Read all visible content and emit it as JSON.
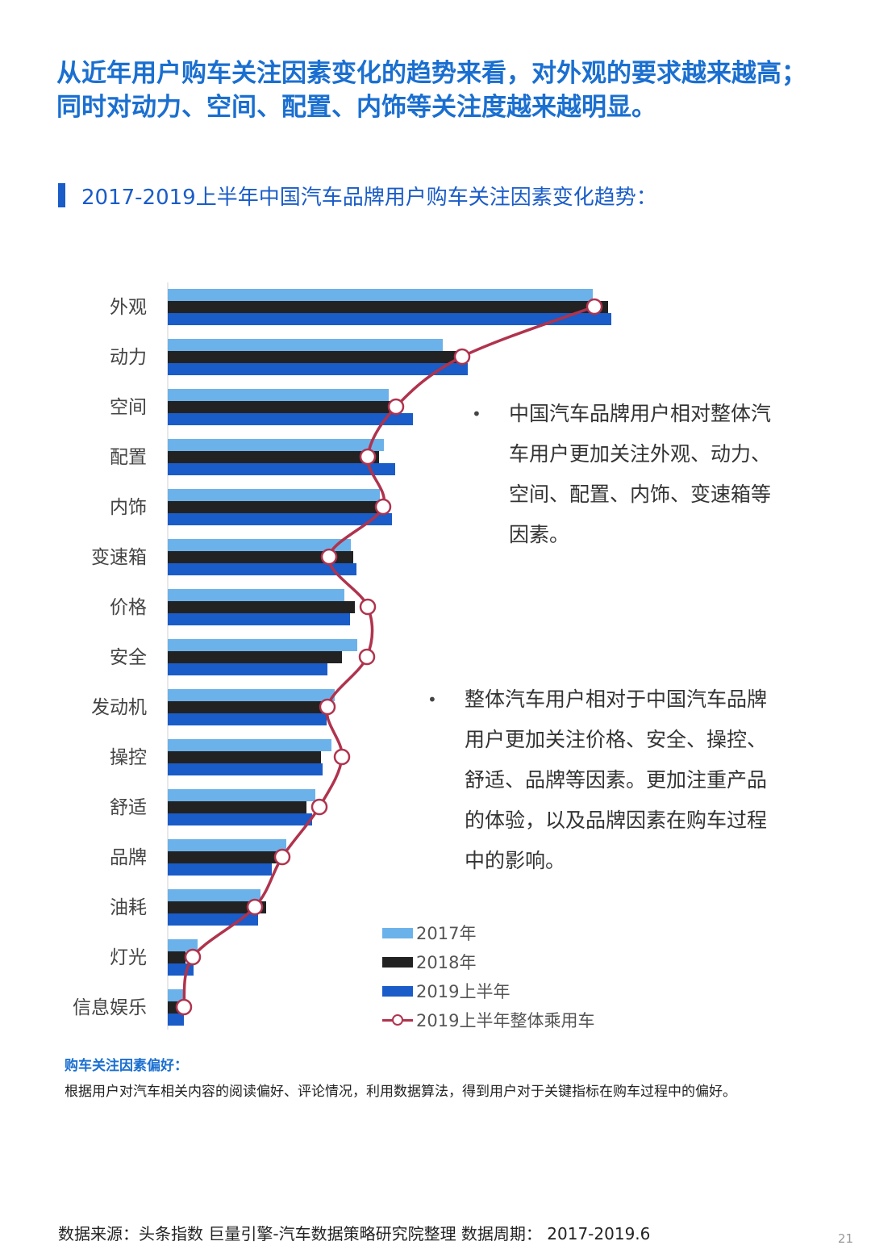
{
  "headline": {
    "line1": "从近年用户购车关注因素变化的趋势来看，对外观的要求越来越高；",
    "line2": "同时对动力、空间、配置、内饰等关注度越来越明显。"
  },
  "section_title": "2017-2019上半年中国汽车品牌用户购车关注因素变化趋势：",
  "colors": {
    "y2017": "#6cb2ea",
    "y2018": "#222222",
    "y2019h1": "#1a5cc8",
    "overall_line": "#b0334d",
    "accent": "#1a6fd0"
  },
  "chart_data": {
    "type": "bar",
    "orientation": "horizontal",
    "categories": [
      "外观",
      "动力",
      "空间",
      "配置",
      "内饰",
      "变速箱",
      "价格",
      "安全",
      "发动机",
      "操控",
      "舒适",
      "品牌",
      "油耗",
      "灯光",
      "信息娱乐"
    ],
    "series": [
      {
        "name": "2017年",
        "type": "bar",
        "values": [
          527,
          341,
          274,
          268,
          263,
          227,
          219,
          235,
          207,
          203,
          183,
          147,
          115,
          37,
          20
        ]
      },
      {
        "name": "2018年",
        "type": "bar",
        "values": [
          546,
          365,
          276,
          262,
          263,
          230,
          232,
          216,
          197,
          190,
          172,
          137,
          122,
          22,
          16
        ]
      },
      {
        "name": "2019上半年",
        "type": "bar",
        "values": [
          550,
          372,
          304,
          282,
          278,
          234,
          226,
          198,
          197,
          192,
          179,
          129,
          112,
          32,
          20
        ]
      },
      {
        "name": "2019上半年整体乘用车",
        "type": "line",
        "values": [
          529,
          365,
          283,
          248,
          267,
          200,
          248,
          247,
          198,
          216,
          188,
          142,
          108,
          31,
          20
        ]
      }
    ],
    "legend_position": "bottom-right",
    "grid": false
  },
  "notes": [
    {
      "bullet": "•",
      "text": "中国汽车品牌用户相对整体汽车用户更加关注外观、动力、空间、配置、内饰、变速箱等因素。"
    },
    {
      "bullet": "•",
      "text": "整体汽车用户相对于中国汽车品牌用户更加关注价格、安全、操控、舒适、品牌等因素。更加注重产品的体验，以及品牌因素在购车过程中的影响。"
    }
  ],
  "footnote": {
    "title": "购车关注因素偏好：",
    "desc": "根据用户对汽车相关内容的阅读偏好、评论情况，利用数据算法，得到用户对于关键指标在购车过程中的偏好。"
  },
  "source": "数据来源：头条指数  巨量引擎-汽车数据策略研究院整理  数据周期：  2017-2019.6",
  "page_number": "21"
}
